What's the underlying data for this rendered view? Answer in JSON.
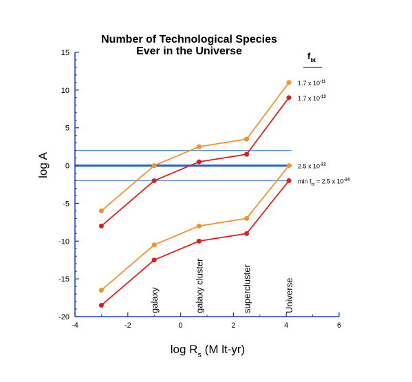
{
  "chart_data": {
    "type": "line",
    "title": "Number of Technological Species",
    "subtitle": "Ever in the Universe",
    "xlabel": "log R",
    "xlabel_sub": "s",
    "xlabel_unit": " (M lt-yr)",
    "ylabel": "log A",
    "xlim": [
      -4,
      6
    ],
    "ylim": [
      -20,
      15
    ],
    "x_ticks": [
      -4,
      -2,
      0,
      2,
      4,
      6
    ],
    "y_ticks": [
      -20,
      -15,
      -10,
      -5,
      0,
      5,
      10,
      15
    ],
    "x": [
      -3,
      -1,
      0.7,
      2.5,
      4.1
    ],
    "series": [
      {
        "values": [
          -6,
          0,
          2.5,
          3.5,
          11
        ],
        "color": "#f5902a"
      },
      {
        "values": [
          -8,
          -2,
          0.5,
          1.5,
          9
        ],
        "color": "#e51b1b"
      },
      {
        "values": [
          -16.5,
          -10.5,
          -8,
          -7,
          0
        ],
        "color": "#f5902a"
      },
      {
        "values": [
          -18.5,
          -12.5,
          -10,
          -9,
          -2
        ],
        "color": "#e51b1b"
      }
    ],
    "hlines": [
      {
        "y": 0,
        "color": "#1f5fd6",
        "weight": "thick"
      },
      {
        "y": 2,
        "color": "#5b8fd9",
        "weight": "thin"
      },
      {
        "y": -2,
        "color": "#5b8fd9",
        "weight": "thin"
      }
    ],
    "x_category_labels": [
      {
        "x": -1,
        "text": "galaxy"
      },
      {
        "x": 0.7,
        "text": "galaxy cluster"
      },
      {
        "x": 2.5,
        "text": "supercluster"
      },
      {
        "x": 4.1,
        "text": "Universe"
      }
    ],
    "legend_header": {
      "text": "f",
      "sub": "bt"
    },
    "annotations": [
      {
        "y": 11,
        "base": "1.7 x 10",
        "exp": "-11"
      },
      {
        "y": 9,
        "base": "1.7 x 10",
        "exp": "-13"
      },
      {
        "y": 0,
        "base": "2.5 x 10",
        "exp": "-22"
      },
      {
        "y": -2,
        "pre": "min f",
        "pre_sub": "bt",
        "base": " = 2.5 x 10",
        "exp": "-24"
      }
    ]
  }
}
